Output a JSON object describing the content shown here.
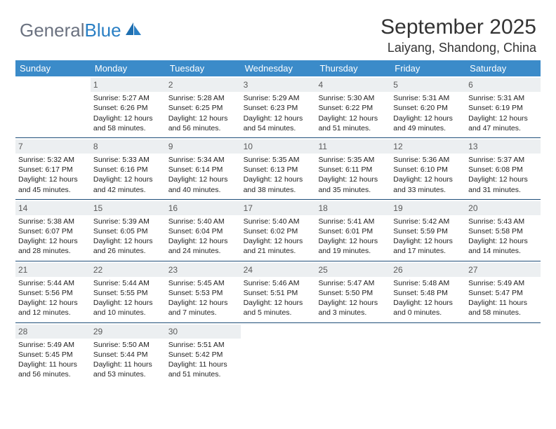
{
  "logo": {
    "text1": "General",
    "text2": "Blue"
  },
  "header": {
    "title": "September 2025",
    "location": "Laiyang, Shandong, China"
  },
  "colors": {
    "header_bg": "#3b8bc9",
    "header_text": "#ffffff",
    "week_border": "#1f4e79",
    "daynum_bg": "#eceff1",
    "daynum_text": "#5a5a5a",
    "body_text": "#222222",
    "logo_gray": "#6b7280",
    "logo_blue": "#2a7fc4"
  },
  "day_names": [
    "Sunday",
    "Monday",
    "Tuesday",
    "Wednesday",
    "Thursday",
    "Friday",
    "Saturday"
  ],
  "weeks": [
    [
      {
        "num": "",
        "sunrise": "",
        "sunset": "",
        "daylight": ""
      },
      {
        "num": "1",
        "sunrise": "Sunrise: 5:27 AM",
        "sunset": "Sunset: 6:26 PM",
        "daylight": "Daylight: 12 hours and 58 minutes."
      },
      {
        "num": "2",
        "sunrise": "Sunrise: 5:28 AM",
        "sunset": "Sunset: 6:25 PM",
        "daylight": "Daylight: 12 hours and 56 minutes."
      },
      {
        "num": "3",
        "sunrise": "Sunrise: 5:29 AM",
        "sunset": "Sunset: 6:23 PM",
        "daylight": "Daylight: 12 hours and 54 minutes."
      },
      {
        "num": "4",
        "sunrise": "Sunrise: 5:30 AM",
        "sunset": "Sunset: 6:22 PM",
        "daylight": "Daylight: 12 hours and 51 minutes."
      },
      {
        "num": "5",
        "sunrise": "Sunrise: 5:31 AM",
        "sunset": "Sunset: 6:20 PM",
        "daylight": "Daylight: 12 hours and 49 minutes."
      },
      {
        "num": "6",
        "sunrise": "Sunrise: 5:31 AM",
        "sunset": "Sunset: 6:19 PM",
        "daylight": "Daylight: 12 hours and 47 minutes."
      }
    ],
    [
      {
        "num": "7",
        "sunrise": "Sunrise: 5:32 AM",
        "sunset": "Sunset: 6:17 PM",
        "daylight": "Daylight: 12 hours and 45 minutes."
      },
      {
        "num": "8",
        "sunrise": "Sunrise: 5:33 AM",
        "sunset": "Sunset: 6:16 PM",
        "daylight": "Daylight: 12 hours and 42 minutes."
      },
      {
        "num": "9",
        "sunrise": "Sunrise: 5:34 AM",
        "sunset": "Sunset: 6:14 PM",
        "daylight": "Daylight: 12 hours and 40 minutes."
      },
      {
        "num": "10",
        "sunrise": "Sunrise: 5:35 AM",
        "sunset": "Sunset: 6:13 PM",
        "daylight": "Daylight: 12 hours and 38 minutes."
      },
      {
        "num": "11",
        "sunrise": "Sunrise: 5:35 AM",
        "sunset": "Sunset: 6:11 PM",
        "daylight": "Daylight: 12 hours and 35 minutes."
      },
      {
        "num": "12",
        "sunrise": "Sunrise: 5:36 AM",
        "sunset": "Sunset: 6:10 PM",
        "daylight": "Daylight: 12 hours and 33 minutes."
      },
      {
        "num": "13",
        "sunrise": "Sunrise: 5:37 AM",
        "sunset": "Sunset: 6:08 PM",
        "daylight": "Daylight: 12 hours and 31 minutes."
      }
    ],
    [
      {
        "num": "14",
        "sunrise": "Sunrise: 5:38 AM",
        "sunset": "Sunset: 6:07 PM",
        "daylight": "Daylight: 12 hours and 28 minutes."
      },
      {
        "num": "15",
        "sunrise": "Sunrise: 5:39 AM",
        "sunset": "Sunset: 6:05 PM",
        "daylight": "Daylight: 12 hours and 26 minutes."
      },
      {
        "num": "16",
        "sunrise": "Sunrise: 5:40 AM",
        "sunset": "Sunset: 6:04 PM",
        "daylight": "Daylight: 12 hours and 24 minutes."
      },
      {
        "num": "17",
        "sunrise": "Sunrise: 5:40 AM",
        "sunset": "Sunset: 6:02 PM",
        "daylight": "Daylight: 12 hours and 21 minutes."
      },
      {
        "num": "18",
        "sunrise": "Sunrise: 5:41 AM",
        "sunset": "Sunset: 6:01 PM",
        "daylight": "Daylight: 12 hours and 19 minutes."
      },
      {
        "num": "19",
        "sunrise": "Sunrise: 5:42 AM",
        "sunset": "Sunset: 5:59 PM",
        "daylight": "Daylight: 12 hours and 17 minutes."
      },
      {
        "num": "20",
        "sunrise": "Sunrise: 5:43 AM",
        "sunset": "Sunset: 5:58 PM",
        "daylight": "Daylight: 12 hours and 14 minutes."
      }
    ],
    [
      {
        "num": "21",
        "sunrise": "Sunrise: 5:44 AM",
        "sunset": "Sunset: 5:56 PM",
        "daylight": "Daylight: 12 hours and 12 minutes."
      },
      {
        "num": "22",
        "sunrise": "Sunrise: 5:44 AM",
        "sunset": "Sunset: 5:55 PM",
        "daylight": "Daylight: 12 hours and 10 minutes."
      },
      {
        "num": "23",
        "sunrise": "Sunrise: 5:45 AM",
        "sunset": "Sunset: 5:53 PM",
        "daylight": "Daylight: 12 hours and 7 minutes."
      },
      {
        "num": "24",
        "sunrise": "Sunrise: 5:46 AM",
        "sunset": "Sunset: 5:51 PM",
        "daylight": "Daylight: 12 hours and 5 minutes."
      },
      {
        "num": "25",
        "sunrise": "Sunrise: 5:47 AM",
        "sunset": "Sunset: 5:50 PM",
        "daylight": "Daylight: 12 hours and 3 minutes."
      },
      {
        "num": "26",
        "sunrise": "Sunrise: 5:48 AM",
        "sunset": "Sunset: 5:48 PM",
        "daylight": "Daylight: 12 hours and 0 minutes."
      },
      {
        "num": "27",
        "sunrise": "Sunrise: 5:49 AM",
        "sunset": "Sunset: 5:47 PM",
        "daylight": "Daylight: 11 hours and 58 minutes."
      }
    ],
    [
      {
        "num": "28",
        "sunrise": "Sunrise: 5:49 AM",
        "sunset": "Sunset: 5:45 PM",
        "daylight": "Daylight: 11 hours and 56 minutes."
      },
      {
        "num": "29",
        "sunrise": "Sunrise: 5:50 AM",
        "sunset": "Sunset: 5:44 PM",
        "daylight": "Daylight: 11 hours and 53 minutes."
      },
      {
        "num": "30",
        "sunrise": "Sunrise: 5:51 AM",
        "sunset": "Sunset: 5:42 PM",
        "daylight": "Daylight: 11 hours and 51 minutes."
      },
      {
        "num": "",
        "sunrise": "",
        "sunset": "",
        "daylight": ""
      },
      {
        "num": "",
        "sunrise": "",
        "sunset": "",
        "daylight": ""
      },
      {
        "num": "",
        "sunrise": "",
        "sunset": "",
        "daylight": ""
      },
      {
        "num": "",
        "sunrise": "",
        "sunset": "",
        "daylight": ""
      }
    ]
  ]
}
